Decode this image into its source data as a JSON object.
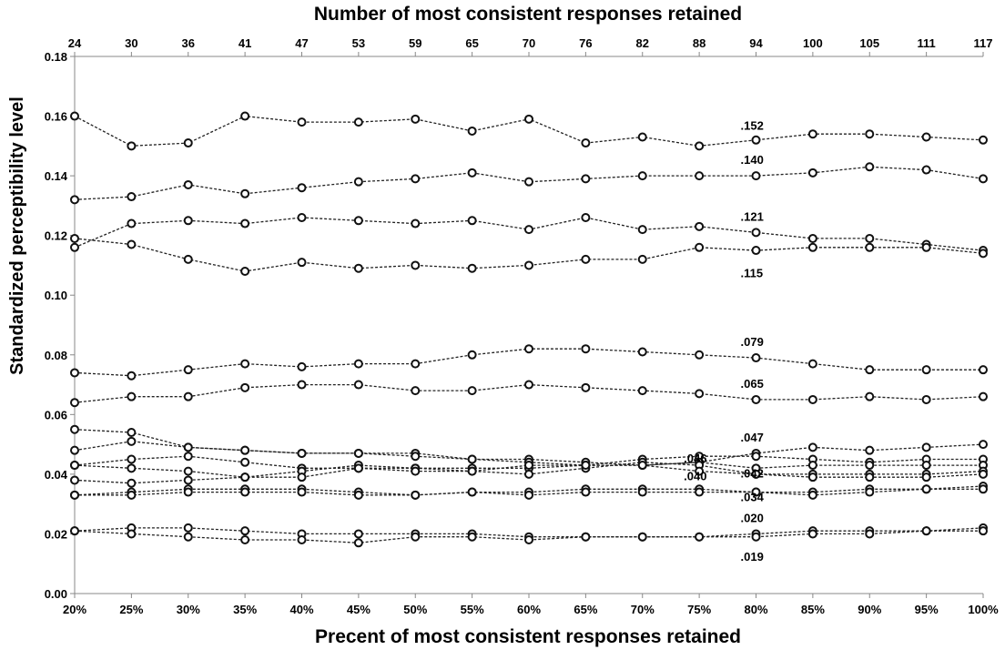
{
  "chart_data": {
    "type": "line",
    "title": "Number of most consistent responses retained",
    "xlabel": "Precent of most consistent responses retained",
    "ylabel": "Standardized perceptibility level",
    "categories": [
      "20%",
      "25%",
      "30%",
      "35%",
      "40%",
      "45%",
      "50%",
      "55%",
      "60%",
      "65%",
      "70%",
      "75%",
      "80%",
      "85%",
      "90%",
      "95%",
      "100%"
    ],
    "top_categories": [
      "24",
      "30",
      "36",
      "41",
      "47",
      "53",
      "59",
      "65",
      "70",
      "76",
      "82",
      "88",
      "94",
      "100",
      "105",
      "111",
      "117"
    ],
    "ylim": [
      0,
      0.18
    ],
    "yticks": [
      "0.00",
      "0.02",
      "0.04",
      "0.06",
      "0.08",
      "0.10",
      "0.12",
      "0.14",
      "0.16",
      "0.18"
    ],
    "grid": false,
    "series": [
      {
        "values": [
          0.16,
          0.15,
          0.151,
          0.16,
          0.158,
          0.158,
          0.159,
          0.155,
          0.159,
          0.151,
          0.153,
          0.15,
          0.152,
          0.154,
          0.154,
          0.153,
          0.152
        ]
      },
      {
        "values": [
          0.132,
          0.133,
          0.137,
          0.134,
          0.136,
          0.138,
          0.139,
          0.141,
          0.138,
          0.139,
          0.14,
          0.14,
          0.14,
          0.141,
          0.143,
          0.142,
          0.139
        ]
      },
      {
        "values": [
          0.116,
          0.124,
          0.125,
          0.124,
          0.126,
          0.125,
          0.124,
          0.125,
          0.122,
          0.126,
          0.122,
          0.123,
          0.121,
          0.119,
          0.119,
          0.117,
          0.115
        ]
      },
      {
        "values": [
          0.119,
          0.117,
          0.112,
          0.108,
          0.111,
          0.109,
          0.11,
          0.109,
          0.11,
          0.112,
          0.112,
          0.116,
          0.115,
          0.116,
          0.116,
          0.116,
          0.114
        ]
      },
      {
        "values": [
          0.074,
          0.073,
          0.075,
          0.077,
          0.076,
          0.077,
          0.077,
          0.08,
          0.082,
          0.082,
          0.081,
          0.08,
          0.079,
          0.077,
          0.075,
          0.075,
          0.075
        ]
      },
      {
        "values": [
          0.064,
          0.066,
          0.066,
          0.069,
          0.07,
          0.07,
          0.068,
          0.068,
          0.07,
          0.069,
          0.068,
          0.067,
          0.065,
          0.065,
          0.066,
          0.065,
          0.066
        ]
      },
      {
        "values": [
          0.055,
          0.054,
          0.049,
          0.048,
          0.047,
          0.047,
          0.047,
          0.045,
          0.045,
          0.044,
          0.043,
          0.044,
          0.047,
          0.049,
          0.048,
          0.049,
          0.05
        ]
      },
      {
        "values": [
          0.048,
          0.051,
          0.049,
          0.048,
          0.047,
          0.047,
          0.046,
          0.045,
          0.044,
          0.043,
          0.045,
          0.046,
          0.046,
          0.045,
          0.044,
          0.045,
          0.045
        ]
      },
      {
        "values": [
          0.043,
          0.045,
          0.046,
          0.044,
          0.042,
          0.042,
          0.042,
          0.042,
          0.042,
          0.043,
          0.043,
          0.044,
          0.042,
          0.043,
          0.043,
          0.043,
          0.043
        ]
      },
      {
        "values": [
          0.043,
          0.042,
          0.041,
          0.039,
          0.041,
          0.043,
          0.042,
          0.041,
          0.04,
          0.042,
          0.044,
          0.043,
          0.04,
          0.04,
          0.04,
          0.04,
          0.041
        ]
      },
      {
        "values": [
          0.038,
          0.037,
          0.038,
          0.039,
          0.039,
          0.042,
          0.041,
          0.041,
          0.043,
          0.043,
          0.043,
          0.041,
          0.04,
          0.039,
          0.039,
          0.039,
          0.04
        ]
      },
      {
        "values": [
          0.033,
          0.034,
          0.035,
          0.035,
          0.035,
          0.034,
          0.033,
          0.034,
          0.034,
          0.035,
          0.035,
          0.035,
          0.034,
          0.034,
          0.035,
          0.035,
          0.036
        ]
      },
      {
        "values": [
          0.033,
          0.033,
          0.034,
          0.034,
          0.034,
          0.033,
          0.033,
          0.034,
          0.033,
          0.034,
          0.034,
          0.034,
          0.034,
          0.033,
          0.034,
          0.035,
          0.035
        ]
      },
      {
        "values": [
          0.021,
          0.022,
          0.022,
          0.021,
          0.02,
          0.02,
          0.02,
          0.02,
          0.019,
          0.019,
          0.019,
          0.019,
          0.02,
          0.021,
          0.021,
          0.021,
          0.022
        ]
      },
      {
        "values": [
          0.021,
          0.02,
          0.019,
          0.018,
          0.018,
          0.017,
          0.019,
          0.019,
          0.018,
          0.019,
          0.019,
          0.019,
          0.019,
          0.02,
          0.02,
          0.021,
          0.021
        ]
      }
    ],
    "annotations": [
      {
        "text": ".152",
        "x": "80%",
        "y": 0.157
      },
      {
        "text": ".140",
        "x": "80%",
        "y": 0.1455
      },
      {
        "text": ".121",
        "x": "80%",
        "y": 0.1265
      },
      {
        "text": ".115",
        "x": "80%",
        "y": 0.1075
      },
      {
        "text": ".079",
        "x": "80%",
        "y": 0.0845
      },
      {
        "text": ".065",
        "x": "80%",
        "y": 0.0705
      },
      {
        "text": ".047",
        "x": "80%",
        "y": 0.0525
      },
      {
        "text": ".046",
        "x": "75%",
        "y": 0.0455
      },
      {
        "text": ".040",
        "x": "75%",
        "y": 0.0395
      },
      {
        "text": ".042",
        "x": "80%",
        "y": 0.0405
      },
      {
        "text": ".034",
        "x": "80%",
        "y": 0.0325
      },
      {
        "text": ".020",
        "x": "80%",
        "y": 0.0255
      },
      {
        "text": ".019",
        "x": "80%",
        "y": 0.0125
      }
    ]
  }
}
